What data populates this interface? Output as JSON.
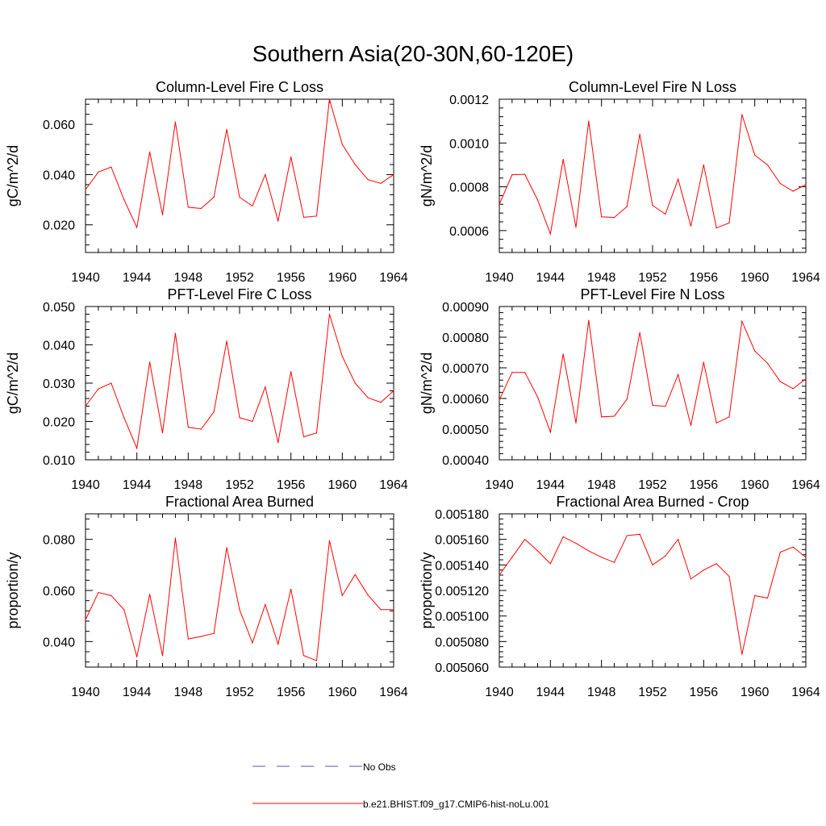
{
  "figure": {
    "title": "Southern Asia(20-30N,60-120E)",
    "legend": [
      {
        "label": "No Obs",
        "color": "#5a5aa0",
        "style": "dashed"
      },
      {
        "label": "b.e21.BHIST.f09_g17.CMIP6-hist-noLu.001",
        "color": "#ff0000",
        "style": "solid"
      }
    ]
  },
  "chart_data": [
    {
      "type": "line",
      "title": "Column-Level Fire C Loss",
      "ylabel": "gC/m^2/d",
      "xlim": [
        1940,
        1964
      ],
      "ylim": [
        0.009,
        0.07
      ],
      "xticks": [
        1940,
        1944,
        1948,
        1952,
        1956,
        1960,
        1964
      ],
      "xticklabels": [
        "1940",
        "1944",
        "1948",
        "1952",
        "1956",
        "1960",
        "1964"
      ],
      "yticks": [
        0.02,
        0.04,
        0.06
      ],
      "yticklabels": [
        "0.020",
        "0.040",
        "0.060"
      ],
      "x": [
        1940,
        1941,
        1942,
        1943,
        1944,
        1945,
        1946,
        1947,
        1948,
        1949,
        1950,
        1951,
        1952,
        1953,
        1954,
        1955,
        1956,
        1957,
        1958,
        1959,
        1960,
        1961,
        1962,
        1963,
        1964
      ],
      "series": [
        {
          "color": "#ff0000",
          "values": [
            0.034,
            0.041,
            0.043,
            0.03,
            0.019,
            0.049,
            0.024,
            0.061,
            0.027,
            0.0265,
            0.031,
            0.058,
            0.031,
            0.0275,
            0.04,
            0.0215,
            0.047,
            0.023,
            0.0235,
            0.07,
            0.052,
            0.044,
            0.038,
            0.0365,
            0.04
          ]
        }
      ]
    },
    {
      "type": "line",
      "title": "Column-Level Fire N Loss",
      "ylabel": "gN/m^2/d",
      "xlim": [
        1940,
        1964
      ],
      "ylim": [
        0.0005,
        0.0012
      ],
      "xticks": [
        1940,
        1944,
        1948,
        1952,
        1956,
        1960,
        1964
      ],
      "xticklabels": [
        "1940",
        "1944",
        "1948",
        "1952",
        "1956",
        "1960",
        "1964"
      ],
      "yticks": [
        0.0006,
        0.0008,
        0.001,
        0.0012
      ],
      "yticklabels": [
        "0.0006",
        "0.0008",
        "0.0010",
        "0.0012"
      ],
      "x": [
        1940,
        1941,
        1942,
        1943,
        1944,
        1945,
        1946,
        1947,
        1948,
        1949,
        1950,
        1951,
        1952,
        1953,
        1954,
        1955,
        1956,
        1957,
        1958,
        1959,
        1960,
        1961,
        1962,
        1963,
        1964
      ],
      "series": [
        {
          "color": "#ff0000",
          "values": [
            0.00072,
            0.000855,
            0.000857,
            0.00074,
            0.000585,
            0.000925,
            0.000615,
            0.0011,
            0.000663,
            0.00066,
            0.00071,
            0.00104,
            0.000715,
            0.000675,
            0.000835,
            0.00062,
            0.0009,
            0.000612,
            0.000635,
            0.00113,
            0.000945,
            0.0009,
            0.000815,
            0.00078,
            0.00081
          ]
        }
      ]
    },
    {
      "type": "line",
      "title": "PFT-Level Fire C Loss",
      "ylabel": "gC/m^2/d",
      "xlim": [
        1940,
        1964
      ],
      "ylim": [
        0.01,
        0.05
      ],
      "xticks": [
        1940,
        1944,
        1948,
        1952,
        1956,
        1960,
        1964
      ],
      "xticklabels": [
        "1940",
        "1944",
        "1948",
        "1952",
        "1956",
        "1960",
        "1964"
      ],
      "yticks": [
        0.01,
        0.02,
        0.03,
        0.04,
        0.05
      ],
      "yticklabels": [
        "0.010",
        "0.020",
        "0.030",
        "0.040",
        "0.050"
      ],
      "x": [
        1940,
        1941,
        1942,
        1943,
        1944,
        1945,
        1946,
        1947,
        1948,
        1949,
        1950,
        1951,
        1952,
        1953,
        1954,
        1955,
        1956,
        1957,
        1958,
        1959,
        1960,
        1961,
        1962,
        1963,
        1964
      ],
      "series": [
        {
          "color": "#ff0000",
          "values": [
            0.024,
            0.0285,
            0.03,
            0.021,
            0.013,
            0.0355,
            0.017,
            0.043,
            0.0185,
            0.018,
            0.0225,
            0.041,
            0.021,
            0.02,
            0.029,
            0.0145,
            0.033,
            0.016,
            0.017,
            0.048,
            0.037,
            0.03,
            0.0262,
            0.025,
            0.028
          ]
        }
      ]
    },
    {
      "type": "line",
      "title": "PFT-Level Fire N Loss",
      "ylabel": "gN/m^2/d",
      "xlim": [
        1940,
        1964
      ],
      "ylim": [
        0.0004,
        0.0009
      ],
      "xticks": [
        1940,
        1944,
        1948,
        1952,
        1956,
        1960,
        1964
      ],
      "xticklabels": [
        "1940",
        "1944",
        "1948",
        "1952",
        "1956",
        "1960",
        "1964"
      ],
      "yticks": [
        0.0004,
        0.0005,
        0.0006,
        0.0007,
        0.0008,
        0.0009
      ],
      "yticklabels": [
        "0.00040",
        "0.00050",
        "0.00060",
        "0.00070",
        "0.00080",
        "0.00090"
      ],
      "x": [
        1940,
        1941,
        1942,
        1943,
        1944,
        1945,
        1946,
        1947,
        1948,
        1949,
        1950,
        1951,
        1952,
        1953,
        1954,
        1955,
        1956,
        1957,
        1958,
        1959,
        1960,
        1961,
        1962,
        1963,
        1964
      ],
      "series": [
        {
          "color": "#ff0000",
          "values": [
            0.000595,
            0.000685,
            0.000685,
            0.000605,
            0.00049,
            0.000745,
            0.00052,
            0.000855,
            0.00054,
            0.000542,
            0.000598,
            0.000815,
            0.000578,
            0.000574,
            0.000678,
            0.000512,
            0.000718,
            0.00052,
            0.00054,
            0.000852,
            0.000755,
            0.000715,
            0.000655,
            0.000632,
            0.000664
          ]
        }
      ]
    },
    {
      "type": "line",
      "title": "Fractional Area Burned",
      "ylabel": "proportion/y",
      "xlim": [
        1940,
        1964
      ],
      "ylim": [
        0.03,
        0.09
      ],
      "xticks": [
        1940,
        1944,
        1948,
        1952,
        1956,
        1960,
        1964
      ],
      "xticklabels": [
        "1940",
        "1944",
        "1948",
        "1952",
        "1956",
        "1960",
        "1964"
      ],
      "yticks": [
        0.04,
        0.06,
        0.08
      ],
      "yticklabels": [
        "0.040",
        "0.060",
        "0.080"
      ],
      "x": [
        1940,
        1941,
        1942,
        1943,
        1944,
        1945,
        1946,
        1947,
        1948,
        1949,
        1950,
        1951,
        1952,
        1953,
        1954,
        1955,
        1956,
        1957,
        1958,
        1959,
        1960,
        1961,
        1962,
        1963,
        1964
      ],
      "series": [
        {
          "color": "#ff0000",
          "values": [
            0.0485,
            0.0592,
            0.058,
            0.0525,
            0.034,
            0.0585,
            0.0345,
            0.0805,
            0.041,
            0.042,
            0.0432,
            0.0768,
            0.0525,
            0.0395,
            0.0545,
            0.039,
            0.0605,
            0.0345,
            0.0325,
            0.0795,
            0.058,
            0.0662,
            0.0582,
            0.0525,
            0.0525
          ]
        }
      ]
    },
    {
      "type": "line",
      "title": "Fractional Area Burned - Crop",
      "ylabel": "proportion/y",
      "xlim": [
        1940,
        1964
      ],
      "ylim": [
        0.00506,
        0.00518
      ],
      "xticks": [
        1940,
        1944,
        1948,
        1952,
        1956,
        1960,
        1964
      ],
      "xticklabels": [
        "1940",
        "1944",
        "1948",
        "1952",
        "1956",
        "1960",
        "1964"
      ],
      "yticks": [
        0.00506,
        0.00508,
        0.0051,
        0.00512,
        0.00514,
        0.00516,
        0.00518
      ],
      "yticklabels": [
        "0.005060",
        "0.005080",
        "0.005100",
        "0.005120",
        "0.005140",
        "0.005160",
        "0.005180"
      ],
      "x": [
        1940,
        1941,
        1942,
        1943,
        1944,
        1945,
        1946,
        1947,
        1948,
        1949,
        1950,
        1951,
        1952,
        1953,
        1954,
        1955,
        1956,
        1957,
        1958,
        1959,
        1960,
        1961,
        1962,
        1963,
        1964
      ],
      "series": [
        {
          "color": "#ff0000",
          "values": [
            0.005132,
            0.005146,
            0.00516,
            0.005151,
            0.005141,
            0.005162,
            0.005157,
            0.005151,
            0.005146,
            0.005142,
            0.005163,
            0.005164,
            0.00514,
            0.005147,
            0.00516,
            0.005129,
            0.005136,
            0.005141,
            0.005131,
            0.00507,
            0.005116,
            0.005114,
            0.00515,
            0.005154,
            0.005146
          ]
        }
      ]
    }
  ]
}
